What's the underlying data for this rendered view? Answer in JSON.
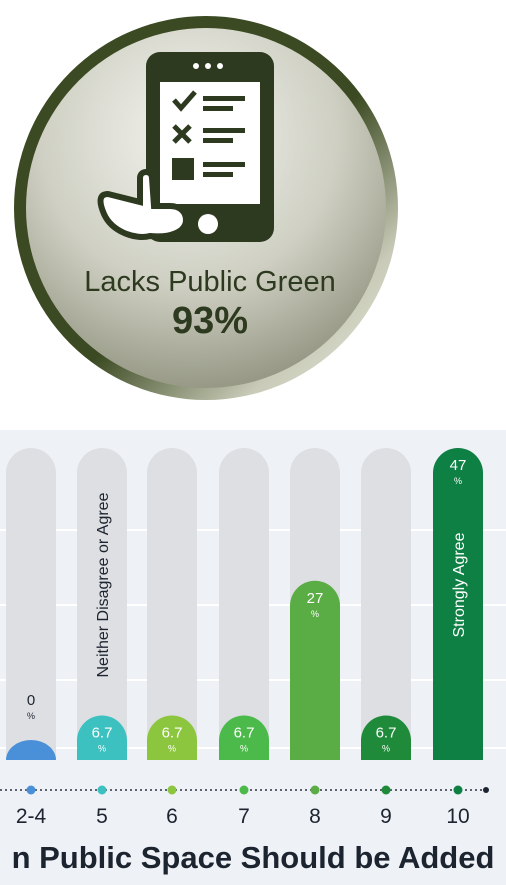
{
  "stat": {
    "label": "Lacks Public Green",
    "value": "93%",
    "colors": {
      "ring_dark": "#3b4a22",
      "disc_light": "#f3f3ef",
      "disc_mid": "#9c9d8c",
      "icon": "#2d3a1f"
    },
    "icon": "tablet-checklist-tap-icon"
  },
  "chart_data": {
    "type": "bar",
    "title": "n Public Space Should be Added",
    "categories": [
      "2-4",
      "5",
      "6",
      "7",
      "8",
      "9",
      "10"
    ],
    "values": [
      0,
      6.7,
      6.7,
      6.7,
      27,
      6.7,
      47
    ],
    "value_labels": [
      "0",
      "6.7",
      "6.7",
      "6.7",
      "27",
      "6.7",
      "47"
    ],
    "unit": "%",
    "ylim": [
      0,
      47
    ],
    "grid": true,
    "annotations": [
      {
        "category": "5",
        "text": "Neither Disagree or Agree"
      },
      {
        "category": "10",
        "text": "Strongly Agree"
      }
    ],
    "colors": [
      "#4a90d9",
      "#3cc1c0",
      "#8cc63f",
      "#4cba4a",
      "#5aac44",
      "#1f8a3a",
      "#0e8044"
    ]
  }
}
